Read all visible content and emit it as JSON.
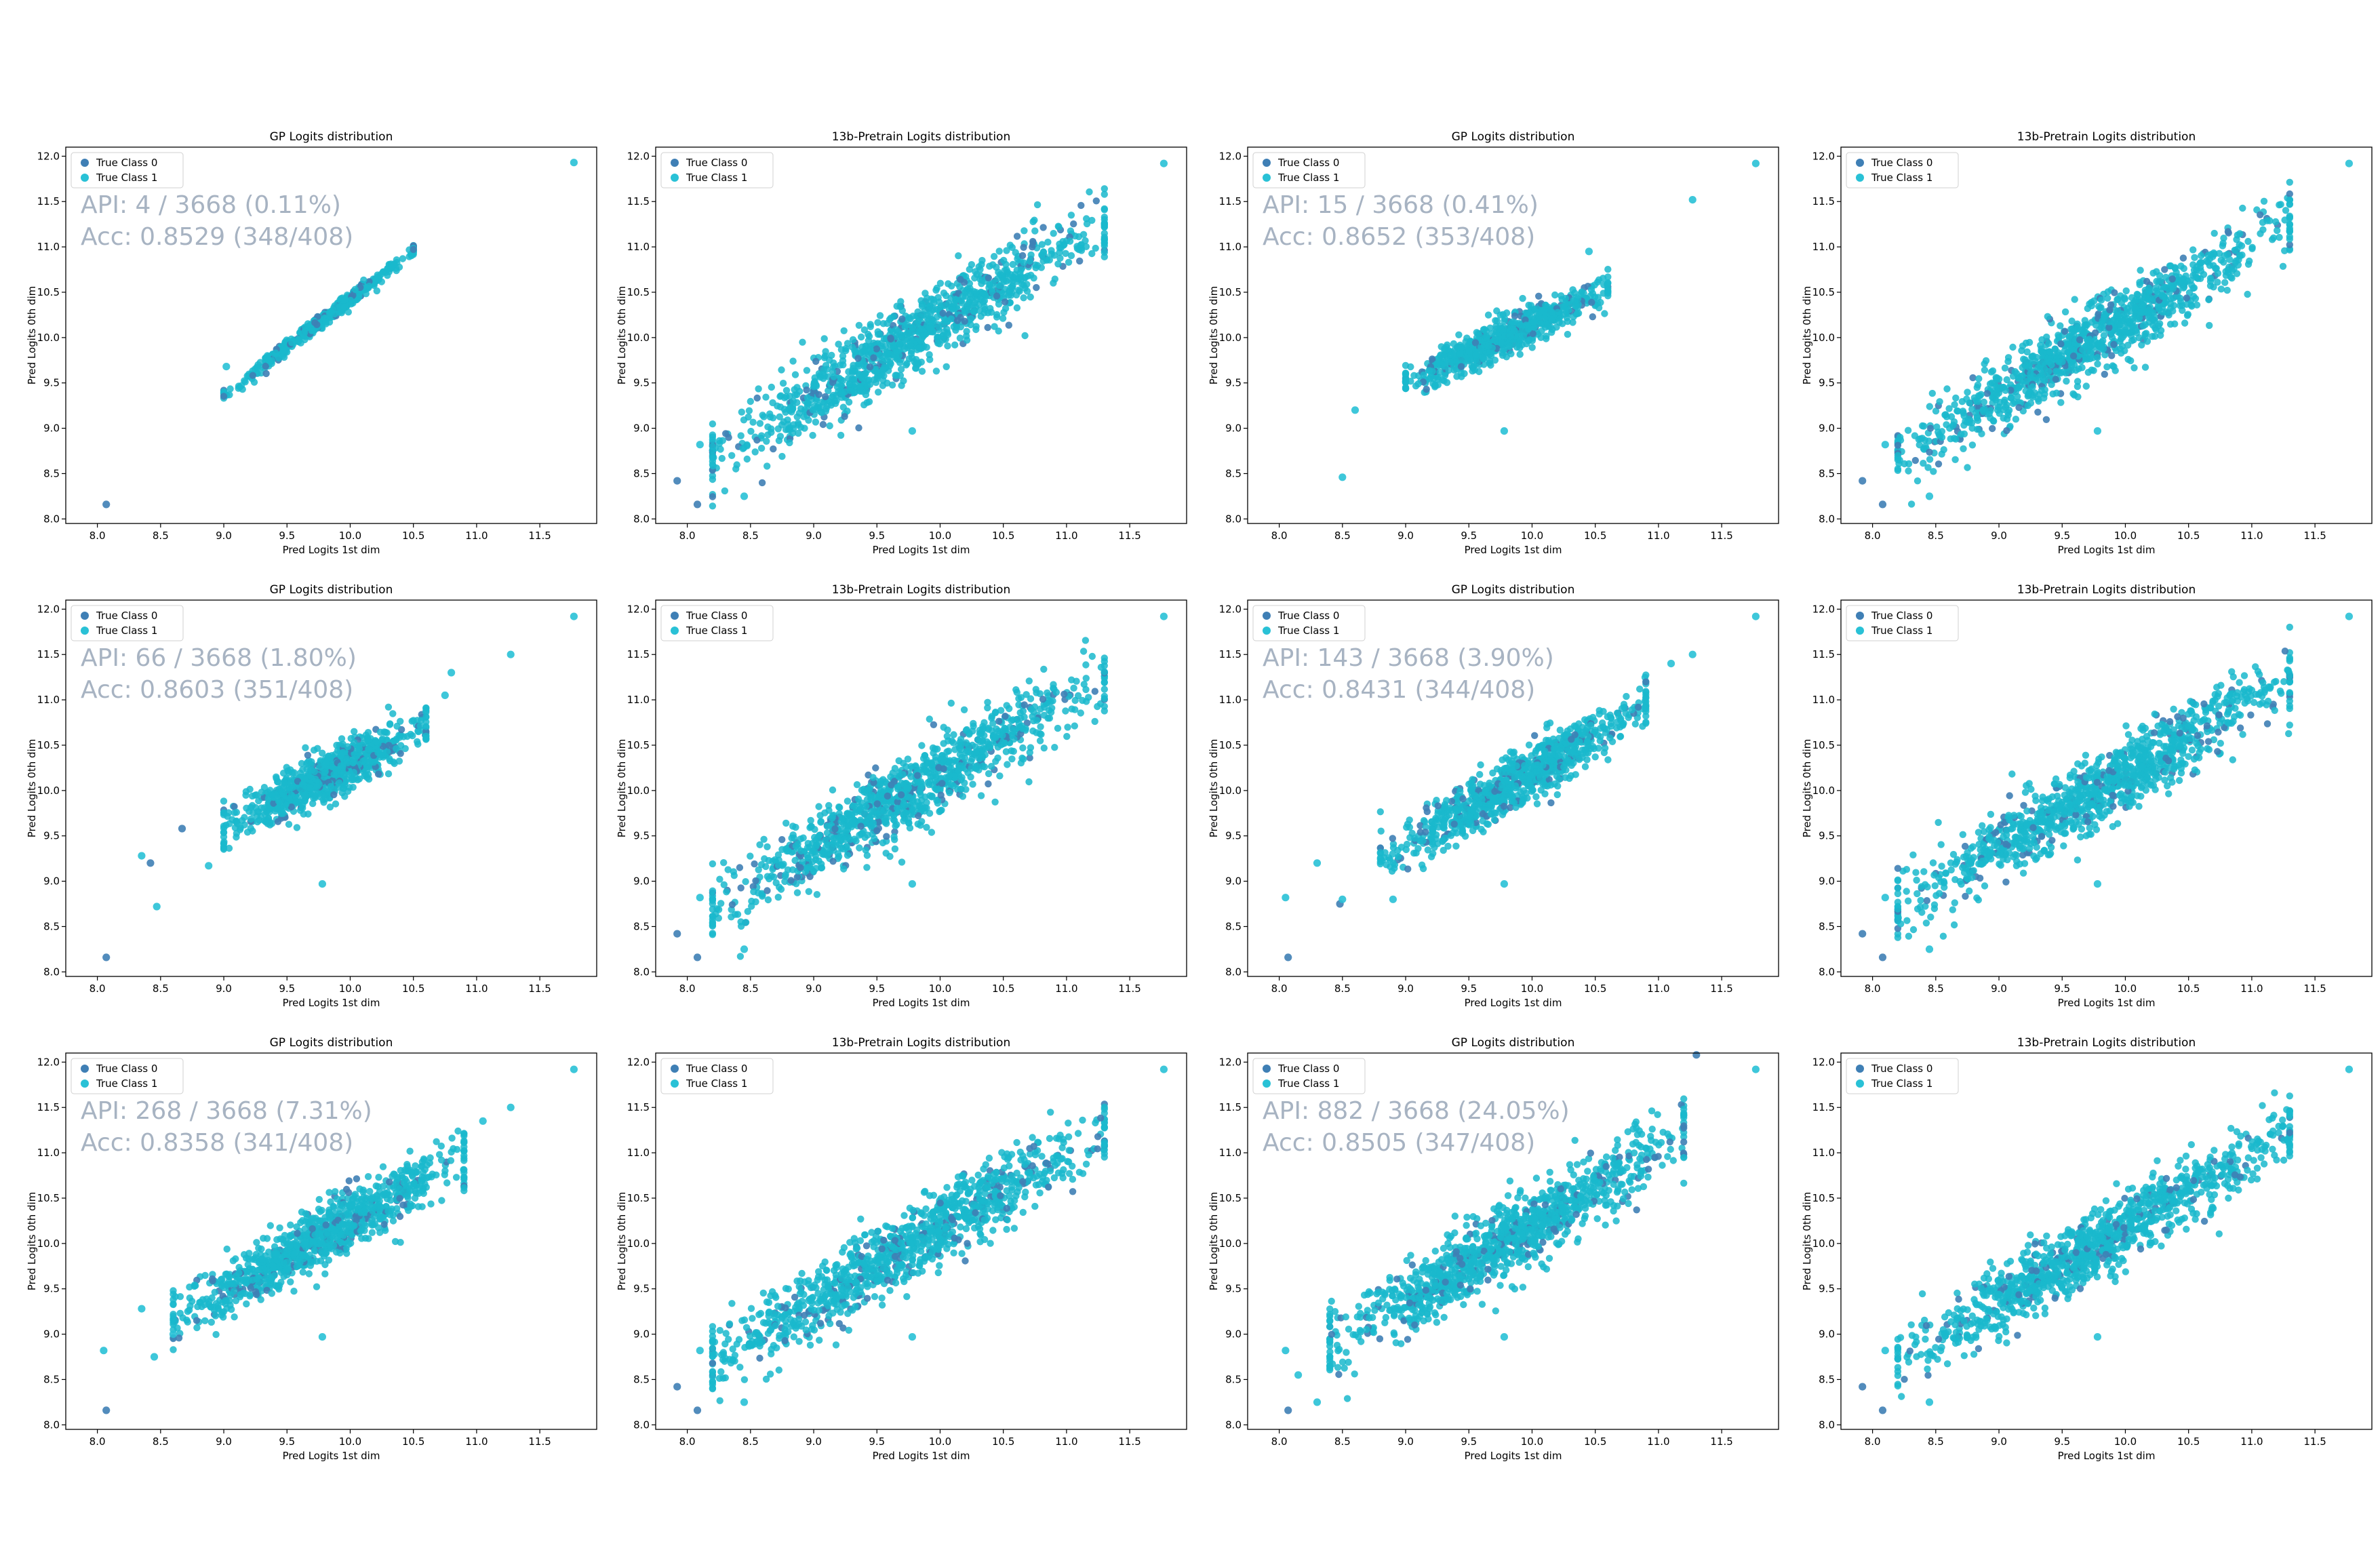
{
  "colors": {
    "class0": "#3f7fb5",
    "class1": "#29c1d6",
    "dense": "#1ab8cc",
    "annotation": "#a7b3c2",
    "axis": "#000000"
  },
  "chart_data": [
    {
      "type": "scatter",
      "title": "GP Logits distribution",
      "xlabel": "Pred Logits 1st dim",
      "ylabel": "Pred Logits 0th dim",
      "xlim": [
        7.75,
        11.95
      ],
      "ylim": [
        7.95,
        12.1
      ],
      "xticks": [
        "8.0",
        "8.5",
        "9.0",
        "9.5",
        "10.0",
        "10.5",
        "11.0",
        "11.5"
      ],
      "yticks": [
        "8.0",
        "8.5",
        "9.0",
        "9.5",
        "10.0",
        "10.5",
        "11.0",
        "11.5",
        "12.0"
      ],
      "legend": [
        "True Class 0",
        "True Class 1"
      ],
      "legend_position": "top-left",
      "annotation": [
        "API: 4 / 3668 (0.11%)",
        "Acc: 0.8529 (348/408)"
      ],
      "cloud": {
        "x_range": [
          9.0,
          10.5
        ],
        "slope": 1.07,
        "intercept": -0.27,
        "spread": 0.04,
        "count": 450
      },
      "outliers": [
        {
          "x": 8.07,
          "y": 8.16,
          "class": 0
        },
        {
          "x": 11.77,
          "y": 11.93,
          "class": 1
        },
        {
          "x": 9.02,
          "y": 9.68,
          "class": 1
        }
      ]
    },
    {
      "type": "scatter",
      "title": "13b-Pretrain Logits distribution",
      "xlabel": "Pred Logits 1st dim",
      "ylabel": "Pred Logits 0th dim",
      "xlim": [
        7.75,
        11.95
      ],
      "ylim": [
        7.95,
        12.1
      ],
      "xticks": [
        "8.0",
        "8.5",
        "9.0",
        "9.5",
        "10.0",
        "10.5",
        "11.0",
        "11.5"
      ],
      "yticks": [
        "8.0",
        "8.5",
        "9.0",
        "9.5",
        "10.0",
        "10.5",
        "11.0",
        "11.5",
        "12.0"
      ],
      "legend": [
        "True Class 0",
        "True Class 1"
      ],
      "legend_position": "top-left",
      "annotation": [],
      "cloud": {
        "x_range": [
          8.2,
          11.3
        ],
        "slope": 0.82,
        "intercept": 1.98,
        "spread": 0.2,
        "count": 1100
      },
      "outliers": [
        {
          "x": 7.92,
          "y": 8.42,
          "class": 0
        },
        {
          "x": 8.08,
          "y": 8.16,
          "class": 0
        },
        {
          "x": 11.77,
          "y": 11.92,
          "class": 1
        },
        {
          "x": 9.78,
          "y": 8.97,
          "class": 1
        },
        {
          "x": 8.45,
          "y": 8.25,
          "class": 1
        },
        {
          "x": 8.1,
          "y": 8.82,
          "class": 1
        }
      ]
    },
    {
      "type": "scatter",
      "title": "GP Logits distribution",
      "xlabel": "Pred Logits 1st dim",
      "ylabel": "Pred Logits 0th dim",
      "xlim": [
        7.75,
        11.95
      ],
      "ylim": [
        7.95,
        12.1
      ],
      "xticks": [
        "8.0",
        "8.5",
        "9.0",
        "9.5",
        "10.0",
        "10.5",
        "11.0",
        "11.5"
      ],
      "yticks": [
        "8.0",
        "8.5",
        "9.0",
        "9.5",
        "10.0",
        "10.5",
        "11.0",
        "11.5",
        "12.0"
      ],
      "legend": [
        "True Class 0",
        "True Class 1"
      ],
      "legend_position": "top-left",
      "annotation": [
        "API: 15 / 3668 (0.41%)",
        "Acc: 0.8652 (353/408)"
      ],
      "cloud": {
        "x_range": [
          9.0,
          10.6
        ],
        "slope": 0.66,
        "intercept": 3.55,
        "spread": 0.1,
        "count": 700
      },
      "outliers": [
        {
          "x": 8.5,
          "y": 8.46,
          "class": 1
        },
        {
          "x": 8.6,
          "y": 9.2,
          "class": 1
        },
        {
          "x": 9.78,
          "y": 8.97,
          "class": 1
        },
        {
          "x": 11.27,
          "y": 11.52,
          "class": 1
        },
        {
          "x": 11.77,
          "y": 11.92,
          "class": 1
        },
        {
          "x": 10.45,
          "y": 10.95,
          "class": 1
        }
      ]
    },
    {
      "type": "scatter",
      "title": "13b-Pretrain Logits distribution",
      "xlabel": "Pred Logits 1st dim",
      "ylabel": "Pred Logits 0th dim",
      "xlim": [
        7.75,
        11.95
      ],
      "ylim": [
        7.95,
        12.1
      ],
      "xticks": [
        "8.0",
        "8.5",
        "9.0",
        "9.5",
        "10.0",
        "10.5",
        "11.0",
        "11.5"
      ],
      "yticks": [
        "8.0",
        "8.5",
        "9.0",
        "9.5",
        "10.0",
        "10.5",
        "11.0",
        "11.5",
        "12.0"
      ],
      "legend": [
        "True Class 0",
        "True Class 1"
      ],
      "legend_position": "top-left",
      "annotation": [],
      "cloud": {
        "x_range": [
          8.2,
          11.3
        ],
        "slope": 0.82,
        "intercept": 1.98,
        "spread": 0.2,
        "count": 1100
      },
      "outliers": [
        {
          "x": 7.92,
          "y": 8.42,
          "class": 0
        },
        {
          "x": 8.08,
          "y": 8.16,
          "class": 0
        },
        {
          "x": 11.77,
          "y": 11.92,
          "class": 1
        },
        {
          "x": 9.78,
          "y": 8.97,
          "class": 1
        },
        {
          "x": 8.45,
          "y": 8.25,
          "class": 1
        },
        {
          "x": 8.1,
          "y": 8.82,
          "class": 1
        }
      ]
    },
    {
      "type": "scatter",
      "title": "GP Logits distribution",
      "xlabel": "Pred Logits 1st dim",
      "ylabel": "Pred Logits 0th dim",
      "xlim": [
        7.75,
        11.95
      ],
      "ylim": [
        7.95,
        12.1
      ],
      "xticks": [
        "8.0",
        "8.5",
        "9.0",
        "9.5",
        "10.0",
        "10.5",
        "11.0",
        "11.5"
      ],
      "yticks": [
        "8.0",
        "8.5",
        "9.0",
        "9.5",
        "10.0",
        "10.5",
        "11.0",
        "11.5",
        "12.0"
      ],
      "legend": [
        "True Class 0",
        "True Class 1"
      ],
      "legend_position": "top-left",
      "annotation": [
        "API: 66 / 3668 (1.80%)",
        "Acc: 0.8603 (351/408)"
      ],
      "cloud": {
        "x_range": [
          9.0,
          10.6
        ],
        "slope": 0.72,
        "intercept": 3.1,
        "spread": 0.13,
        "count": 800
      },
      "outliers": [
        {
          "x": 8.07,
          "y": 8.16,
          "class": 0
        },
        {
          "x": 8.47,
          "y": 8.72,
          "class": 1
        },
        {
          "x": 8.35,
          "y": 9.28,
          "class": 1
        },
        {
          "x": 8.42,
          "y": 9.2,
          "class": 0
        },
        {
          "x": 8.67,
          "y": 9.58,
          "class": 0
        },
        {
          "x": 8.88,
          "y": 9.17,
          "class": 1
        },
        {
          "x": 9.78,
          "y": 8.97,
          "class": 1
        },
        {
          "x": 11.27,
          "y": 11.5,
          "class": 1
        },
        {
          "x": 11.77,
          "y": 11.92,
          "class": 1
        },
        {
          "x": 10.8,
          "y": 11.3,
          "class": 1
        },
        {
          "x": 10.75,
          "y": 11.05,
          "class": 1
        }
      ]
    },
    {
      "type": "scatter",
      "title": "13b-Pretrain Logits distribution",
      "xlabel": "Pred Logits 1st dim",
      "ylabel": "Pred Logits 0th dim",
      "xlim": [
        7.75,
        11.95
      ],
      "ylim": [
        7.95,
        12.1
      ],
      "xticks": [
        "8.0",
        "8.5",
        "9.0",
        "9.5",
        "10.0",
        "10.5",
        "11.0",
        "11.5"
      ],
      "yticks": [
        "8.0",
        "8.5",
        "9.0",
        "9.5",
        "10.0",
        "10.5",
        "11.0",
        "11.5",
        "12.0"
      ],
      "legend": [
        "True Class 0",
        "True Class 1"
      ],
      "legend_position": "top-left",
      "annotation": [],
      "cloud": {
        "x_range": [
          8.2,
          11.3
        ],
        "slope": 0.82,
        "intercept": 1.98,
        "spread": 0.2,
        "count": 1100
      },
      "outliers": [
        {
          "x": 7.92,
          "y": 8.42,
          "class": 0
        },
        {
          "x": 8.08,
          "y": 8.16,
          "class": 0
        },
        {
          "x": 11.77,
          "y": 11.92,
          "class": 1
        },
        {
          "x": 9.78,
          "y": 8.97,
          "class": 1
        },
        {
          "x": 8.45,
          "y": 8.25,
          "class": 1
        },
        {
          "x": 8.1,
          "y": 8.82,
          "class": 1
        }
      ]
    },
    {
      "type": "scatter",
      "title": "GP Logits distribution",
      "xlabel": "Pred Logits 1st dim",
      "ylabel": "Pred Logits 0th dim",
      "xlim": [
        7.75,
        11.95
      ],
      "ylim": [
        7.95,
        12.1
      ],
      "xticks": [
        "8.0",
        "8.5",
        "9.0",
        "9.5",
        "10.0",
        "10.5",
        "11.0",
        "11.5"
      ],
      "yticks": [
        "8.0",
        "8.5",
        "9.0",
        "9.5",
        "10.0",
        "10.5",
        "11.0",
        "11.5",
        "12.0"
      ],
      "legend": [
        "True Class 0",
        "True Class 1"
      ],
      "legend_position": "top-left",
      "annotation": [
        "API: 143 / 3668 (3.90%)",
        "Acc: 0.8431 (344/408)"
      ],
      "cloud": {
        "x_range": [
          8.8,
          10.9
        ],
        "slope": 0.8,
        "intercept": 2.2,
        "spread": 0.15,
        "count": 900
      },
      "outliers": [
        {
          "x": 8.07,
          "y": 8.16,
          "class": 0
        },
        {
          "x": 8.05,
          "y": 8.82,
          "class": 1
        },
        {
          "x": 8.48,
          "y": 8.75,
          "class": 0
        },
        {
          "x": 8.5,
          "y": 8.8,
          "class": 1
        },
        {
          "x": 8.3,
          "y": 9.2,
          "class": 1
        },
        {
          "x": 8.9,
          "y": 8.8,
          "class": 1
        },
        {
          "x": 9.78,
          "y": 8.97,
          "class": 1
        },
        {
          "x": 11.27,
          "y": 11.5,
          "class": 1
        },
        {
          "x": 11.77,
          "y": 11.92,
          "class": 1
        },
        {
          "x": 11.1,
          "y": 11.4,
          "class": 1
        }
      ]
    },
    {
      "type": "scatter",
      "title": "13b-Pretrain Logits distribution",
      "xlabel": "Pred Logits 1st dim",
      "ylabel": "Pred Logits 0th dim",
      "xlim": [
        7.75,
        11.95
      ],
      "ylim": [
        7.95,
        12.1
      ],
      "xticks": [
        "8.0",
        "8.5",
        "9.0",
        "9.5",
        "10.0",
        "10.5",
        "11.0",
        "11.5"
      ],
      "yticks": [
        "8.0",
        "8.5",
        "9.0",
        "9.5",
        "10.0",
        "10.5",
        "11.0",
        "11.5",
        "12.0"
      ],
      "legend": [
        "True Class 0",
        "True Class 1"
      ],
      "legend_position": "top-left",
      "annotation": [],
      "cloud": {
        "x_range": [
          8.2,
          11.3
        ],
        "slope": 0.82,
        "intercept": 1.98,
        "spread": 0.2,
        "count": 1100
      },
      "outliers": [
        {
          "x": 7.92,
          "y": 8.42,
          "class": 0
        },
        {
          "x": 8.08,
          "y": 8.16,
          "class": 0
        },
        {
          "x": 11.77,
          "y": 11.92,
          "class": 1
        },
        {
          "x": 9.78,
          "y": 8.97,
          "class": 1
        },
        {
          "x": 8.45,
          "y": 8.25,
          "class": 1
        },
        {
          "x": 8.1,
          "y": 8.82,
          "class": 1
        }
      ]
    },
    {
      "type": "scatter",
      "title": "GP Logits distribution",
      "xlabel": "Pred Logits 1st dim",
      "ylabel": "Pred Logits 0th dim",
      "xlim": [
        7.75,
        11.95
      ],
      "ylim": [
        7.95,
        12.1
      ],
      "xticks": [
        "8.0",
        "8.5",
        "9.0",
        "9.5",
        "10.0",
        "10.5",
        "11.0",
        "11.5"
      ],
      "yticks": [
        "8.0",
        "8.5",
        "9.0",
        "9.5",
        "10.0",
        "10.5",
        "11.0",
        "11.5",
        "12.0"
      ],
      "legend": [
        "True Class 0",
        "True Class 1"
      ],
      "legend_position": "top-left",
      "annotation": [
        "API: 268 / 3668 (7.31%)",
        "Acc: 0.8358 (341/408)"
      ],
      "cloud": {
        "x_range": [
          8.6,
          10.9
        ],
        "slope": 0.78,
        "intercept": 2.45,
        "spread": 0.16,
        "count": 1000
      },
      "outliers": [
        {
          "x": 8.07,
          "y": 8.16,
          "class": 0
        },
        {
          "x": 8.05,
          "y": 8.82,
          "class": 1
        },
        {
          "x": 8.45,
          "y": 8.75,
          "class": 1
        },
        {
          "x": 8.35,
          "y": 9.28,
          "class": 1
        },
        {
          "x": 8.6,
          "y": 9.0,
          "class": 1
        },
        {
          "x": 9.78,
          "y": 8.97,
          "class": 1
        },
        {
          "x": 11.27,
          "y": 11.5,
          "class": 1
        },
        {
          "x": 11.77,
          "y": 11.92,
          "class": 1
        },
        {
          "x": 11.05,
          "y": 11.35,
          "class": 1
        }
      ]
    },
    {
      "type": "scatter",
      "title": "13b-Pretrain Logits distribution",
      "xlabel": "Pred Logits 1st dim",
      "ylabel": "Pred Logits 0th dim",
      "xlim": [
        7.75,
        11.95
      ],
      "ylim": [
        7.95,
        12.1
      ],
      "xticks": [
        "8.0",
        "8.5",
        "9.0",
        "9.5",
        "10.0",
        "10.5",
        "11.0",
        "11.5"
      ],
      "yticks": [
        "8.0",
        "8.5",
        "9.0",
        "9.5",
        "10.0",
        "10.5",
        "11.0",
        "11.5",
        "12.0"
      ],
      "legend": [
        "True Class 0",
        "True Class 1"
      ],
      "legend_position": "top-left",
      "annotation": [],
      "cloud": {
        "x_range": [
          8.2,
          11.3
        ],
        "slope": 0.82,
        "intercept": 1.98,
        "spread": 0.2,
        "count": 1100
      },
      "outliers": [
        {
          "x": 7.92,
          "y": 8.42,
          "class": 0
        },
        {
          "x": 8.08,
          "y": 8.16,
          "class": 0
        },
        {
          "x": 11.77,
          "y": 11.92,
          "class": 1
        },
        {
          "x": 9.78,
          "y": 8.97,
          "class": 1
        },
        {
          "x": 8.45,
          "y": 8.25,
          "class": 1
        },
        {
          "x": 8.1,
          "y": 8.82,
          "class": 1
        }
      ]
    },
    {
      "type": "scatter",
      "title": "GP Logits distribution",
      "xlabel": "Pred Logits 1st dim",
      "ylabel": "Pred Logits 0th dim",
      "xlim": [
        7.75,
        11.95
      ],
      "ylim": [
        7.95,
        12.1
      ],
      "xticks": [
        "8.0",
        "8.5",
        "9.0",
        "9.5",
        "10.0",
        "10.5",
        "11.0",
        "11.5"
      ],
      "yticks": [
        "8.0",
        "8.5",
        "9.0",
        "9.5",
        "10.0",
        "10.5",
        "11.0",
        "11.5",
        "12.0"
      ],
      "legend": [
        "True Class 0",
        "True Class 1"
      ],
      "legend_position": "top-left",
      "annotation": [
        "API: 882 / 3668 (24.05%)",
        "Acc: 0.8505 (347/408)"
      ],
      "cloud": {
        "x_range": [
          8.4,
          11.2
        ],
        "slope": 0.82,
        "intercept": 2.0,
        "spread": 0.2,
        "count": 1100
      },
      "outliers": [
        {
          "x": 8.07,
          "y": 8.16,
          "class": 0
        },
        {
          "x": 8.05,
          "y": 8.82,
          "class": 1
        },
        {
          "x": 8.3,
          "y": 8.25,
          "class": 1
        },
        {
          "x": 8.15,
          "y": 8.55,
          "class": 1
        },
        {
          "x": 9.78,
          "y": 8.97,
          "class": 1
        },
        {
          "x": 11.3,
          "y": 12.08,
          "class": 0
        },
        {
          "x": 11.77,
          "y": 11.92,
          "class": 1
        }
      ]
    },
    {
      "type": "scatter",
      "title": "13b-Pretrain Logits distribution",
      "xlabel": "Pred Logits 1st dim",
      "ylabel": "Pred Logits 0th dim",
      "xlim": [
        7.75,
        11.95
      ],
      "ylim": [
        7.95,
        12.1
      ],
      "xticks": [
        "8.0",
        "8.5",
        "9.0",
        "9.5",
        "10.0",
        "10.5",
        "11.0",
        "11.5"
      ],
      "yticks": [
        "8.0",
        "8.5",
        "9.0",
        "9.5",
        "10.0",
        "10.5",
        "11.0",
        "11.5",
        "12.0"
      ],
      "legend": [
        "True Class 0",
        "True Class 1"
      ],
      "legend_position": "top-left",
      "annotation": [],
      "cloud": {
        "x_range": [
          8.2,
          11.3
        ],
        "slope": 0.82,
        "intercept": 1.98,
        "spread": 0.2,
        "count": 1100
      },
      "outliers": [
        {
          "x": 7.92,
          "y": 8.42,
          "class": 0
        },
        {
          "x": 8.08,
          "y": 8.16,
          "class": 0
        },
        {
          "x": 11.77,
          "y": 11.92,
          "class": 1
        },
        {
          "x": 9.78,
          "y": 8.97,
          "class": 1
        },
        {
          "x": 8.45,
          "y": 8.25,
          "class": 1
        },
        {
          "x": 8.1,
          "y": 8.82,
          "class": 1
        }
      ]
    }
  ]
}
